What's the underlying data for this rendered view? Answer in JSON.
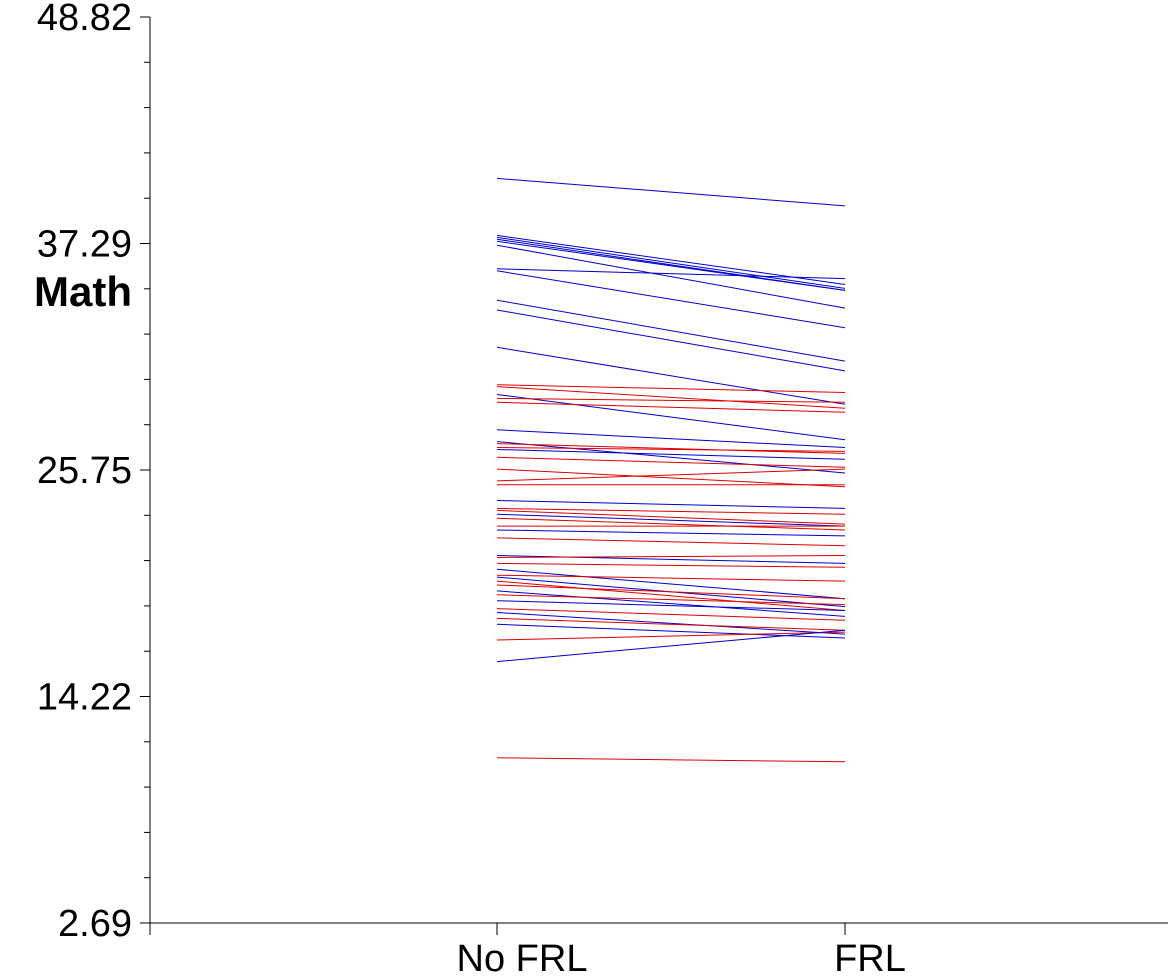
{
  "chart_data": {
    "type": "line",
    "title": "",
    "xlabel": "",
    "ylabel": "Math",
    "categories": [
      "No FRL",
      "FRL"
    ],
    "ylim": [
      2.69,
      48.82
    ],
    "yticks": [
      "48.82",
      "37.29",
      "25.75",
      "14.22",
      "2.69"
    ],
    "grid": false,
    "legend": "none",
    "colors": {
      "blue": "#0000cc",
      "red": "#e00000",
      "axis": "#000000"
    },
    "series": [
      {
        "color": "blue",
        "values": [
          40.6,
          39.2
        ]
      },
      {
        "color": "blue",
        "values": [
          37.7,
          35.2
        ]
      },
      {
        "color": "blue",
        "values": [
          37.6,
          35.0
        ]
      },
      {
        "color": "blue",
        "values": [
          37.5,
          34.9
        ]
      },
      {
        "color": "blue",
        "values": [
          37.4,
          34.9
        ]
      },
      {
        "color": "blue",
        "values": [
          37.2,
          34.0
        ]
      },
      {
        "color": "blue",
        "values": [
          36.0,
          35.5
        ]
      },
      {
        "color": "blue",
        "values": [
          35.9,
          33.0
        ]
      },
      {
        "color": "blue",
        "values": [
          34.4,
          31.3
        ]
      },
      {
        "color": "blue",
        "values": [
          33.9,
          30.8
        ]
      },
      {
        "color": "blue",
        "values": [
          32.0,
          29.1
        ]
      },
      {
        "color": "red",
        "values": [
          30.1,
          29.7
        ]
      },
      {
        "color": "red",
        "values": [
          30.0,
          28.9
        ]
      },
      {
        "color": "blue",
        "values": [
          29.6,
          27.3
        ]
      },
      {
        "color": "red",
        "values": [
          29.4,
          29.2
        ]
      },
      {
        "color": "red",
        "values": [
          29.2,
          28.7
        ]
      },
      {
        "color": "blue",
        "values": [
          27.8,
          26.9
        ]
      },
      {
        "color": "blue",
        "values": [
          27.2,
          25.6
        ]
      },
      {
        "color": "red",
        "values": [
          27.1,
          26.6
        ]
      },
      {
        "color": "red",
        "values": [
          26.9,
          26.7
        ]
      },
      {
        "color": "blue",
        "values": [
          26.8,
          26.3
        ]
      },
      {
        "color": "red",
        "values": [
          26.4,
          25.9
        ]
      },
      {
        "color": "red",
        "values": [
          25.8,
          24.9
        ]
      },
      {
        "color": "red",
        "values": [
          25.2,
          25.8
        ]
      },
      {
        "color": "red",
        "values": [
          25.0,
          25.0
        ]
      },
      {
        "color": "blue",
        "values": [
          24.2,
          23.8
        ]
      },
      {
        "color": "red",
        "values": [
          23.8,
          23.5
        ]
      },
      {
        "color": "red",
        "values": [
          23.7,
          23.0
        ]
      },
      {
        "color": "blue",
        "values": [
          23.5,
          22.9
        ]
      },
      {
        "color": "red",
        "values": [
          23.3,
          22.7
        ]
      },
      {
        "color": "red",
        "values": [
          22.9,
          22.9
        ]
      },
      {
        "color": "blue",
        "values": [
          22.7,
          22.4
        ]
      },
      {
        "color": "red",
        "values": [
          22.3,
          21.9
        ]
      },
      {
        "color": "blue",
        "values": [
          21.4,
          21.0
        ]
      },
      {
        "color": "red",
        "values": [
          21.3,
          21.4
        ]
      },
      {
        "color": "red",
        "values": [
          21.0,
          20.8
        ]
      },
      {
        "color": "blue",
        "values": [
          20.7,
          19.2
        ]
      },
      {
        "color": "red",
        "values": [
          20.4,
          20.1
        ]
      },
      {
        "color": "blue",
        "values": [
          20.3,
          18.8
        ]
      },
      {
        "color": "red",
        "values": [
          20.1,
          18.6
        ]
      },
      {
        "color": "red",
        "values": [
          19.9,
          19.2
        ]
      },
      {
        "color": "blue",
        "values": [
          19.6,
          18.3
        ]
      },
      {
        "color": "red",
        "values": [
          19.4,
          18.9
        ]
      },
      {
        "color": "blue",
        "values": [
          19.1,
          18.6
        ]
      },
      {
        "color": "red",
        "values": [
          18.7,
          18.1
        ]
      },
      {
        "color": "blue",
        "values": [
          18.5,
          17.4
        ]
      },
      {
        "color": "red",
        "values": [
          18.2,
          17.6
        ]
      },
      {
        "color": "blue",
        "values": [
          17.9,
          17.2
        ]
      },
      {
        "color": "red",
        "values": [
          17.1,
          17.5
        ]
      },
      {
        "color": "blue",
        "values": [
          16.0,
          17.6
        ]
      },
      {
        "color": "red",
        "values": [
          11.1,
          10.9
        ]
      }
    ]
  }
}
